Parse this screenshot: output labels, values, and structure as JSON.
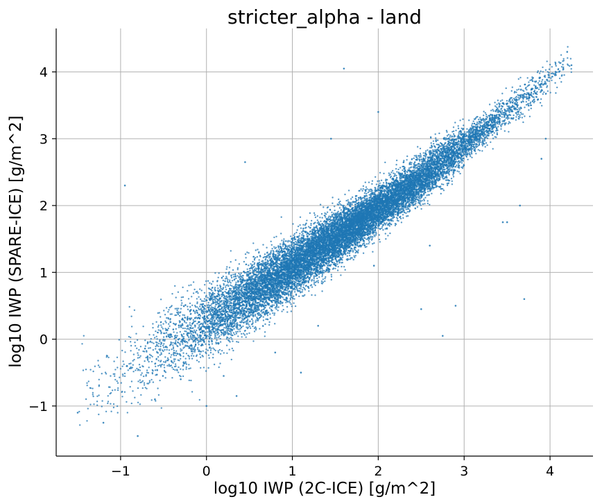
{
  "chart_data": {
    "type": "scatter",
    "title": "stricter_alpha - land",
    "xlabel": "log10 IWP (2C-ICE) [g/m^2]",
    "ylabel": "log10 IWP (SPARE-ICE) [g/m^2]",
    "xlim": [
      -1.75,
      4.5
    ],
    "ylim": [
      -1.75,
      4.65
    ],
    "xticks": [
      -1,
      0,
      1,
      2,
      3,
      4
    ],
    "yticks": [
      -1,
      0,
      1,
      2,
      3,
      4
    ],
    "xtick_labels": [
      "−1",
      "0",
      "1",
      "2",
      "3",
      "4"
    ],
    "ytick_labels": [
      "−1",
      "0",
      "1",
      "2",
      "3",
      "4"
    ],
    "grid": true,
    "marker_color": "#1f77b4",
    "series": [
      {
        "x": [
          1.6,
          -0.95,
          4.2,
          4.25,
          3.95,
          3.7,
          3.5,
          0.45,
          2.75,
          3.9,
          2.0,
          3.45,
          2.5,
          -1.5,
          -1.2,
          -0.8,
          0.0,
          0.35,
          1.1,
          2.9,
          3.65,
          1.45,
          2.3,
          1.95,
          1.3,
          0.8,
          0.2,
          -0.3,
          -0.6,
          2.6
        ],
        "y": [
          4.05,
          2.3,
          4.3,
          4.1,
          3.0,
          0.6,
          1.75,
          2.65,
          0.05,
          2.7,
          3.4,
          1.75,
          0.45,
          -1.1,
          -1.25,
          -1.45,
          -1.0,
          -0.85,
          -0.5,
          0.5,
          2.0,
          3.0,
          2.55,
          1.1,
          0.2,
          -0.2,
          -0.55,
          -0.6,
          -0.9,
          1.4
        ]
      }
    ],
    "trend": {
      "description_points_x": [
        -1.4,
        -0.5,
        0.5,
        1.5,
        2.5,
        3.5,
        4.2
      ],
      "description_points_y": [
        -0.75,
        -0.15,
        0.65,
        1.5,
        2.4,
        3.4,
        4.1
      ]
    }
  }
}
